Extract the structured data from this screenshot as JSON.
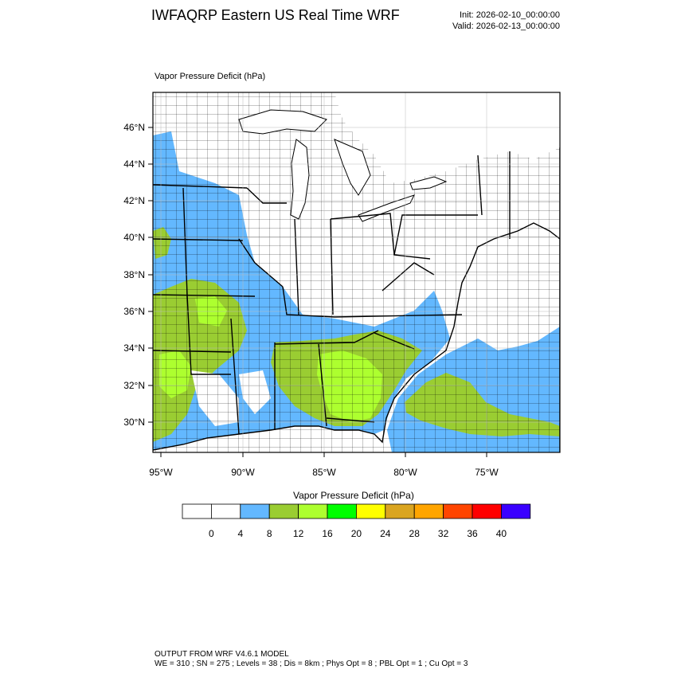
{
  "header": {
    "title": "IWFAQRP Eastern US Real Time WRF",
    "init": "Init: 2026-02-10_00:00:00",
    "valid": "Valid: 2026-02-13_00:00:00"
  },
  "map": {
    "field_title": "Vapor Pressure Deficit   (hPa)",
    "lat_labels": [
      "46°N",
      "44°N",
      "42°N",
      "40°N",
      "38°N",
      "36°N",
      "34°N",
      "32°N",
      "30°N"
    ],
    "lon_labels": [
      "95°W",
      "90°W",
      "85°W",
      "80°W",
      "75°W"
    ]
  },
  "legend": {
    "title": "Vapor Pressure Deficit  (hPa)",
    "colors": [
      "#ffffff",
      "#ffffff",
      "#63b8ff",
      "#9acd32",
      "#adff2f",
      "#00ff00",
      "#ffff00",
      "#daa520",
      "#ffa500",
      "#ff4500",
      "#ff0000",
      "#3a00ff"
    ],
    "labels": [
      "0",
      "4",
      "8",
      "12",
      "16",
      "20",
      "24",
      "28",
      "32",
      "36",
      "40"
    ]
  },
  "footer": {
    "line1": "OUTPUT FROM WRF V4.6.1 MODEL",
    "line2": "WE = 310 ; SN = 275 ; Levels = 38 ; Dis = 8km ; Phys Opt = 8 ; PBL Opt = 1 ; Cu Opt = 3"
  }
}
